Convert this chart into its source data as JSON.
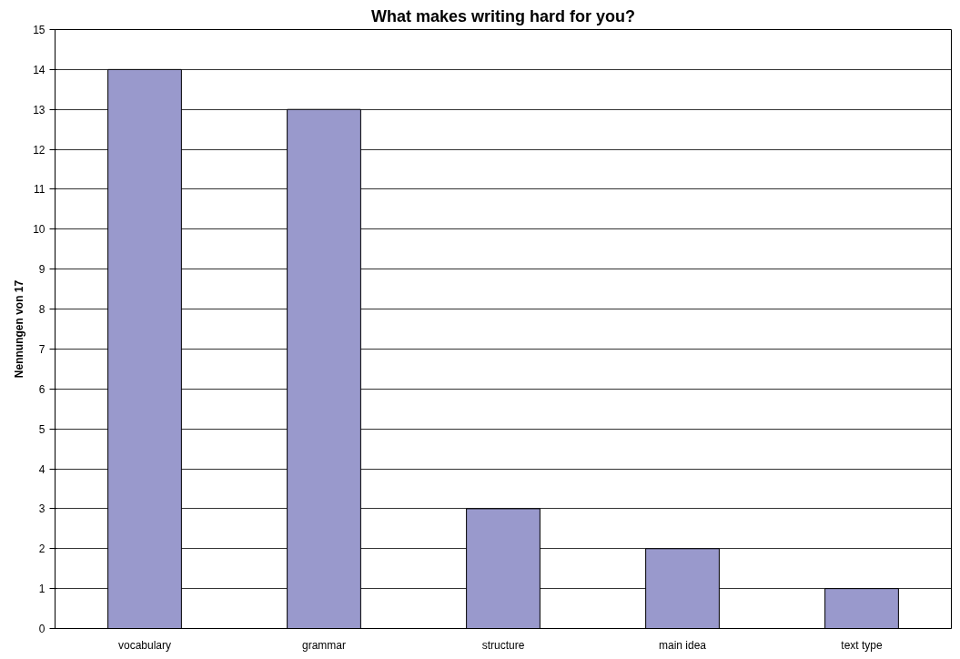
{
  "chart_data": {
    "type": "bar",
    "title": "What makes writing hard for you?",
    "ylabel": "Nennungen von 17",
    "categories": [
      "vocabulary",
      "grammar",
      "structure",
      "main idea",
      "text type"
    ],
    "values": [
      14,
      13,
      3,
      2,
      1
    ],
    "color": "#9999cc",
    "ylim": [
      0,
      15
    ],
    "yticks": [
      0,
      1,
      2,
      3,
      4,
      5,
      6,
      7,
      8,
      9,
      10,
      11,
      12,
      13,
      14,
      15
    ],
    "grid": "y"
  }
}
